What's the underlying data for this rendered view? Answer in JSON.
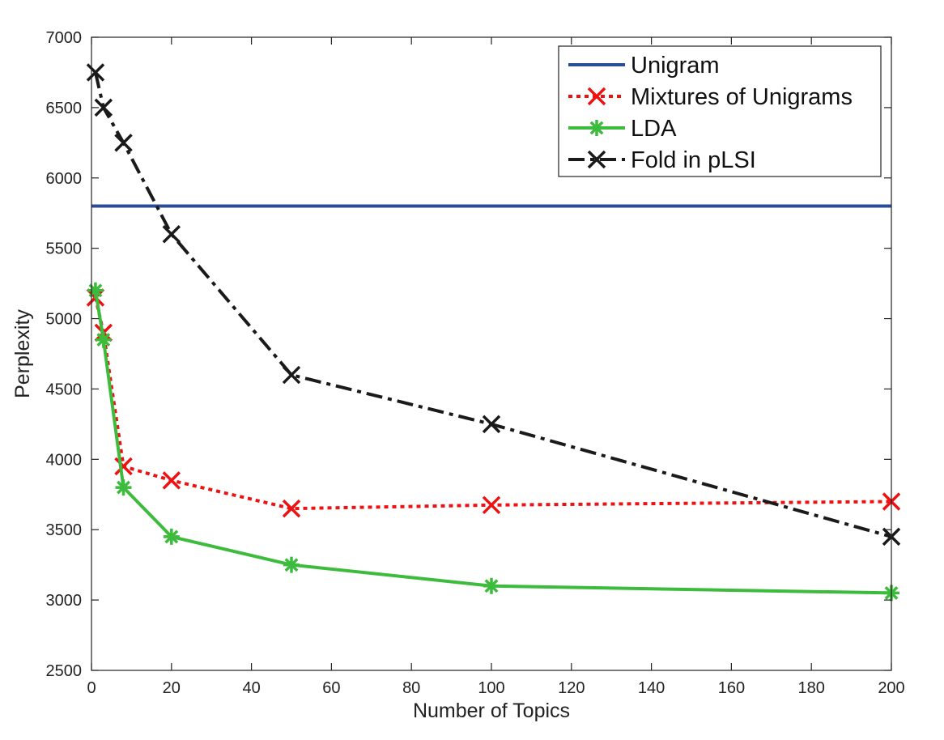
{
  "chart_data": {
    "type": "line",
    "xlabel": "Number of Topics",
    "ylabel": "Perplexity",
    "xlim": [
      0,
      200
    ],
    "ylim": [
      2500,
      7000
    ],
    "xticks": [
      0,
      20,
      40,
      60,
      80,
      100,
      120,
      140,
      160,
      180,
      200
    ],
    "yticks": [
      2500,
      3000,
      3500,
      4000,
      4500,
      5000,
      5500,
      6000,
      6500,
      7000
    ],
    "grid": false,
    "legend_position": "top-right",
    "series": [
      {
        "name": "Unigram",
        "color": "#2a4d9a",
        "line_style": "solid",
        "marker": "none",
        "x": [
          0,
          200
        ],
        "y": [
          5800,
          5800
        ]
      },
      {
        "name": "Mixtures of Unigrams",
        "color": "#ee1111",
        "line_style": "dotted",
        "marker": "x",
        "x": [
          1,
          3,
          8,
          20,
          50,
          100,
          200
        ],
        "y": [
          5150,
          4900,
          3950,
          3850,
          3650,
          3675,
          3700
        ]
      },
      {
        "name": "LDA",
        "color": "#3dbb3d",
        "line_style": "solid",
        "marker": "asterisk",
        "x": [
          1,
          3,
          8,
          20,
          50,
          100,
          200
        ],
        "y": [
          5200,
          4850,
          3800,
          3450,
          3250,
          3100,
          3050
        ]
      },
      {
        "name": "Fold in pLSI",
        "color": "#1a1a1a",
        "line_style": "dashdot",
        "marker": "x",
        "x": [
          1,
          3,
          8,
          20,
          50,
          100,
          200
        ],
        "y": [
          6750,
          6500,
          6250,
          5600,
          4600,
          4250,
          3450
        ]
      }
    ]
  }
}
